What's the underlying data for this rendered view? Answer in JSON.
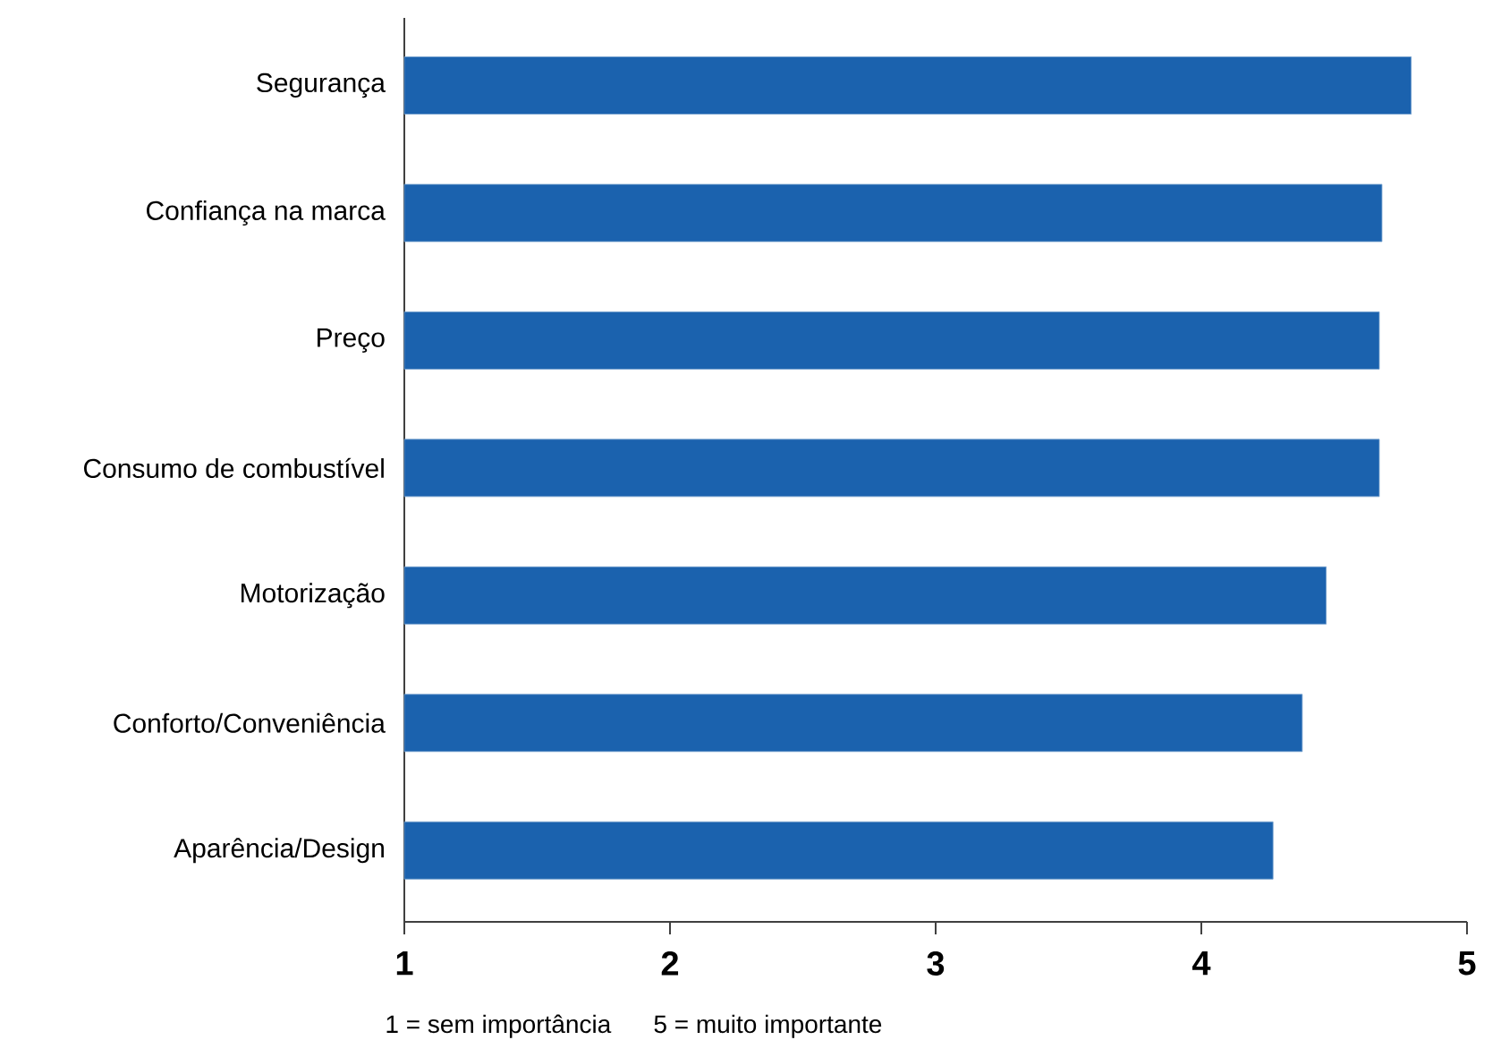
{
  "chart_data": {
    "type": "bar",
    "orientation": "horizontal",
    "categories": [
      "Segurança",
      "Confiança na marca",
      "Preço",
      "Consumo de combustível",
      "Motorização",
      "Conforto/Conveniência",
      "Aparência/Design"
    ],
    "values": [
      4.79,
      4.68,
      4.67,
      4.67,
      4.47,
      4.38,
      4.27
    ],
    "color": "#1b62ae",
    "xlim": [
      1,
      5
    ],
    "xticks": [
      1,
      2,
      3,
      4,
      5
    ],
    "annotations": [
      "1 = sem importância",
      "5 = muito importante"
    ]
  }
}
